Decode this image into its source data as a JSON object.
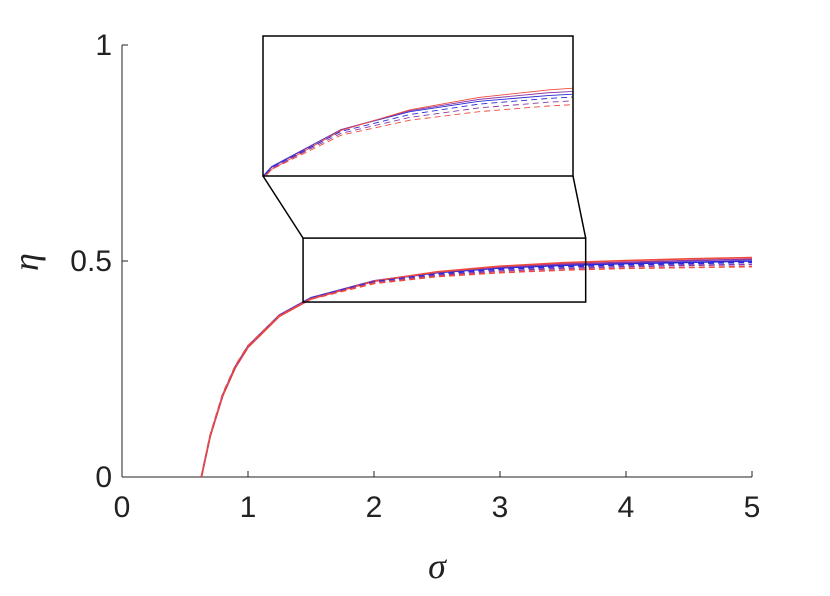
{
  "chart_data": {
    "type": "line",
    "x_label": "σ",
    "y_label": "η",
    "x": [
      0.63,
      0.7,
      0.8,
      0.9,
      1,
      1.25,
      1.5,
      2,
      2.5,
      3,
      3.5,
      4,
      4.5,
      5
    ],
    "series": [
      {
        "color": "#2a2ad8",
        "dash": false,
        "values": [
          0,
          0.095,
          0.19,
          0.256,
          0.303,
          0.375,
          0.415,
          0.454,
          0.473,
          0.484,
          0.49,
          0.494,
          0.497,
          0.5
        ]
      },
      {
        "color": "#8a3aa8",
        "dash": false,
        "values": [
          0,
          0.095,
          0.19,
          0.255,
          0.302,
          0.374,
          0.414,
          0.454,
          0.474,
          0.486,
          0.493,
          0.497,
          0.501,
          0.504
        ]
      },
      {
        "color": "#f04a3c",
        "dash": false,
        "values": [
          0,
          0.094,
          0.188,
          0.253,
          0.3,
          0.372,
          0.412,
          0.453,
          0.475,
          0.488,
          0.496,
          0.501,
          0.505,
          0.508
        ]
      },
      {
        "color": "#2a2ad8",
        "dash": true,
        "values": [
          0,
          0.096,
          0.191,
          0.256,
          0.303,
          0.375,
          0.414,
          0.452,
          0.47,
          0.481,
          0.487,
          0.491,
          0.494,
          0.497
        ]
      },
      {
        "color": "#8a3aa8",
        "dash": true,
        "values": [
          0,
          0.096,
          0.191,
          0.256,
          0.303,
          0.374,
          0.413,
          0.45,
          0.467,
          0.477,
          0.483,
          0.487,
          0.49,
          0.492
        ]
      },
      {
        "color": "#f04a3c",
        "dash": true,
        "values": [
          0,
          0.097,
          0.193,
          0.258,
          0.304,
          0.374,
          0.412,
          0.448,
          0.464,
          0.473,
          0.479,
          0.483,
          0.485,
          0.487
        ]
      }
    ],
    "xlim": [
      0,
      5
    ],
    "xticks": [
      0,
      1,
      2,
      3,
      4,
      5
    ],
    "ylim": [
      0,
      1
    ],
    "yticks": [
      0,
      0.5,
      1
    ],
    "inset": {
      "xlim": [
        1.437,
        3.68
      ],
      "ylim": [
        0.405,
        0.553
      ]
    }
  }
}
